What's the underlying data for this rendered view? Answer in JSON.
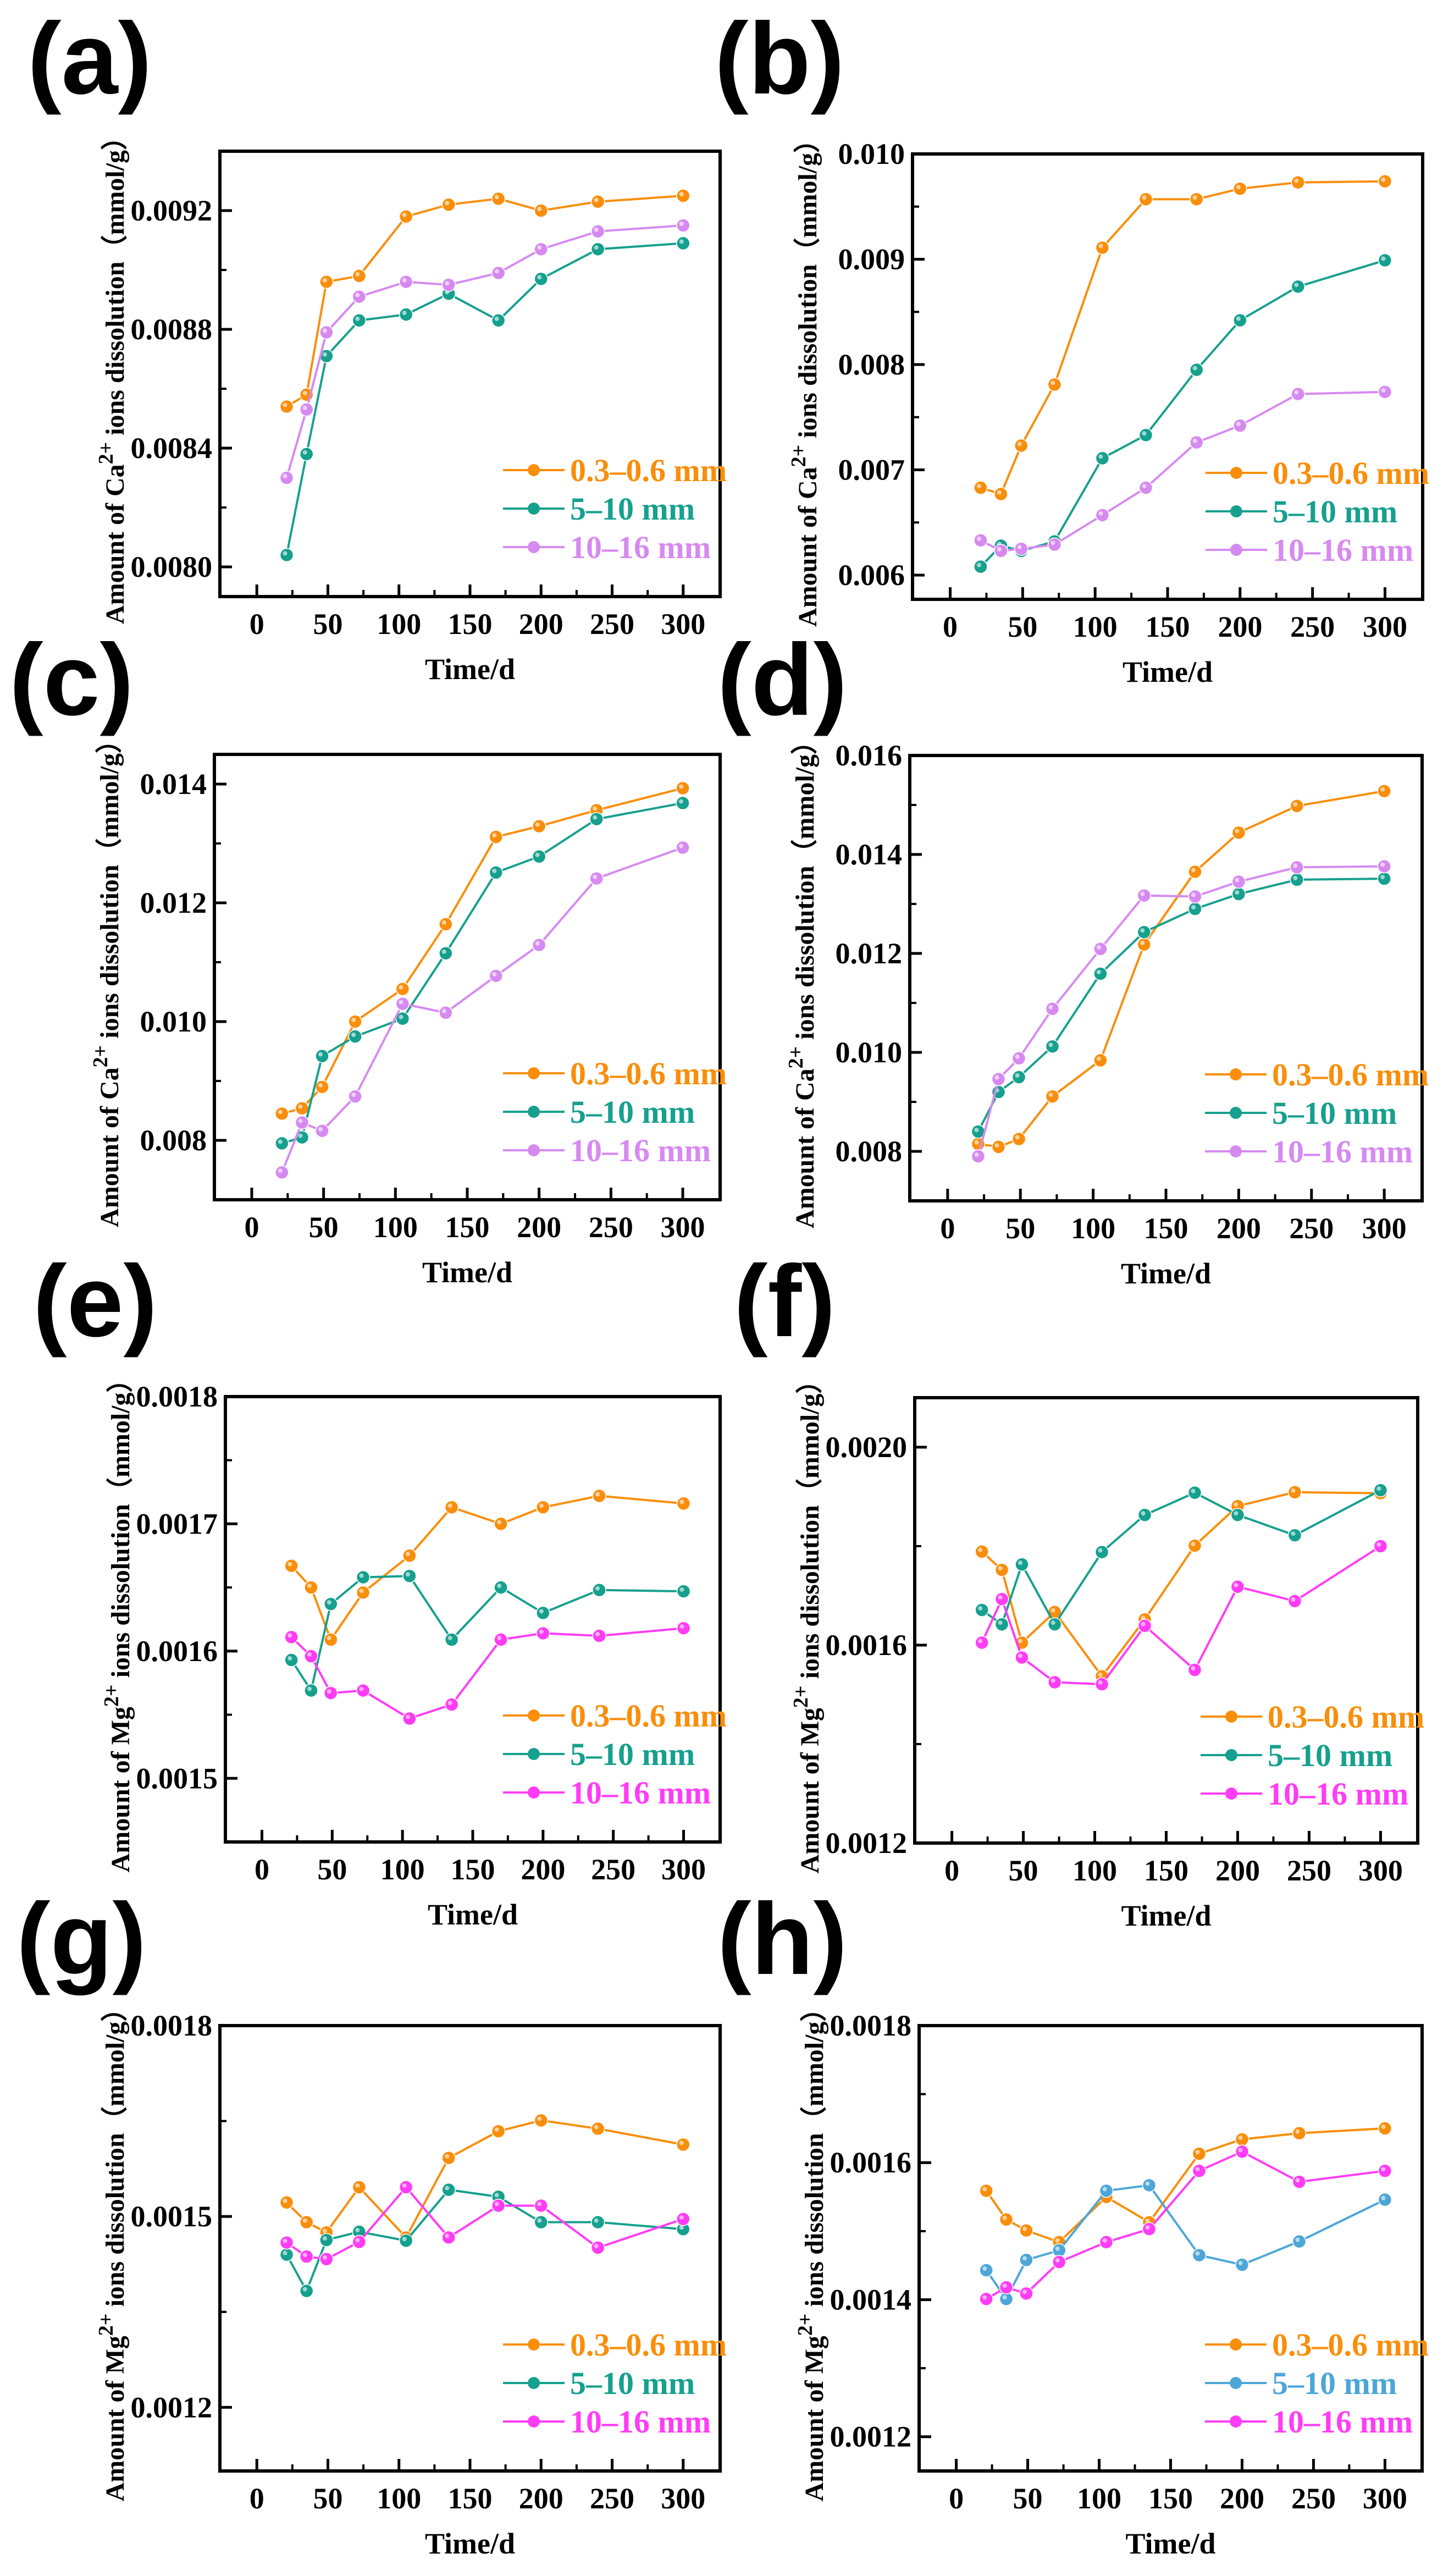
{
  "chart_data": [
    {
      "panel": "(a)",
      "type": "line",
      "xlabel": "Time/d",
      "ylabel_prefix": "Amount of Ca",
      "ylabel_sup": "2+",
      "ylabel_suffix": " ions dissolution（mmol/g）",
      "xlim": [
        -26,
        326
      ],
      "ylim": [
        0.0079,
        0.0094
      ],
      "xticks": [
        0,
        50,
        100,
        150,
        200,
        250,
        300
      ],
      "yticks": [
        "0.0080",
        "0.0084",
        "0.0088",
        "0.0092"
      ],
      "x": [
        21,
        35,
        49,
        72,
        105,
        135,
        170,
        200,
        240,
        300
      ],
      "legend_position": "bottom-right",
      "series": [
        {
          "name": "0.3–0.6 mm",
          "color": "#F98E0B",
          "values": [
            0.00854,
            0.00858,
            0.00896,
            0.00898,
            0.00918,
            0.00922,
            0.00924,
            0.0092,
            0.00923,
            0.00925
          ]
        },
        {
          "name": "5–10 mm",
          "color": "#16A08E",
          "values": [
            0.00804,
            0.00838,
            0.00871,
            0.00883,
            0.00885,
            0.00892,
            0.00883,
            0.00897,
            0.00907,
            0.00909
          ]
        },
        {
          "name": "10–16 mm",
          "color": "#D68AF0",
          "values": [
            0.0083,
            0.00853,
            0.00879,
            0.00891,
            0.00896,
            0.00895,
            0.00899,
            0.00907,
            0.00913,
            0.00915
          ]
        }
      ]
    },
    {
      "panel": "(b)",
      "type": "line",
      "xlabel": "Time/d",
      "ylabel_prefix": "Amount of Ca",
      "ylabel_sup": "2+",
      "ylabel_suffix": " ions dissolution（mmol/g）",
      "xlim": [
        -26,
        326
      ],
      "ylim": [
        0.00577,
        0.01
      ],
      "xticks": [
        0,
        50,
        100,
        150,
        200,
        250,
        300
      ],
      "yticks": [
        "0.006",
        "0.007",
        "0.008",
        "0.009",
        "0.010"
      ],
      "x": [
        21,
        35,
        49,
        72,
        105,
        135,
        170,
        200,
        240,
        300
      ],
      "legend_position": "bottom-right",
      "series": [
        {
          "name": "0.3–0.6 mm",
          "color": "#F98E0B",
          "values": [
            0.00683,
            0.00677,
            0.00723,
            0.00781,
            0.00911,
            0.00957,
            0.00957,
            0.00967,
            0.00973,
            0.00974
          ]
        },
        {
          "name": "5–10 mm",
          "color": "#16A08E",
          "values": [
            0.00608,
            0.00628,
            0.00623,
            0.00632,
            0.00711,
            0.00733,
            0.00795,
            0.00842,
            0.00874,
            0.00899
          ]
        },
        {
          "name": "10–16 mm",
          "color": "#D68AF0",
          "values": [
            0.00633,
            0.00623,
            0.00625,
            0.00629,
            0.00657,
            0.00683,
            0.00726,
            0.00742,
            0.00772,
            0.00774
          ]
        }
      ]
    },
    {
      "panel": "(c)",
      "type": "line",
      "xlabel": "Time/d",
      "ylabel_prefix": "Amount of Ca",
      "ylabel_sup": "2+",
      "ylabel_suffix": " ions dissolution（mmol/g）",
      "xlim": [
        -26,
        326
      ],
      "ylim": [
        0.007,
        0.0145
      ],
      "xticks": [
        0,
        50,
        100,
        150,
        200,
        250,
        300
      ],
      "yticks": [
        "0.008",
        "0.010",
        "0.012",
        "0.014"
      ],
      "x": [
        21,
        35,
        49,
        72,
        105,
        135,
        170,
        200,
        240,
        300
      ],
      "legend_position": "bottom-right",
      "series": [
        {
          "name": "0.3–0.6 mm",
          "color": "#F98E0B",
          "values": [
            0.00845,
            0.00854,
            0.0089,
            0.01,
            0.01055,
            0.01164,
            0.01311,
            0.01329,
            0.01356,
            0.01393
          ]
        },
        {
          "name": "5–10 mm",
          "color": "#16A08E",
          "values": [
            0.00795,
            0.00805,
            0.00942,
            0.00975,
            0.01005,
            0.01115,
            0.01251,
            0.01278,
            0.01341,
            0.01368
          ]
        },
        {
          "name": "10–16 mm",
          "color": "#D68AF0",
          "values": [
            0.00746,
            0.0083,
            0.00816,
            0.00874,
            0.0103,
            0.01015,
            0.01077,
            0.01129,
            0.01241,
            0.01293
          ]
        }
      ]
    },
    {
      "panel": "(d)",
      "type": "line",
      "xlabel": "Time/d",
      "ylabel_prefix": "Amount of Ca",
      "ylabel_sup": "2+",
      "ylabel_suffix": " ions dissolution（mmol/g）",
      "xlim": [
        -26,
        326
      ],
      "ylim": [
        0.007,
        0.016
      ],
      "xticks": [
        0,
        50,
        100,
        150,
        200,
        250,
        300
      ],
      "yticks": [
        "0.008",
        "0.010",
        "0.012",
        "0.014",
        "0.016"
      ],
      "x": [
        21,
        35,
        49,
        72,
        105,
        135,
        170,
        200,
        240,
        300
      ],
      "legend_position": "bottom-right",
      "series": [
        {
          "name": "0.3–0.6 mm",
          "color": "#F98E0B",
          "values": [
            0.00815,
            0.00809,
            0.00825,
            0.00911,
            0.00984,
            0.01218,
            0.01365,
            0.01444,
            0.01498,
            0.01528
          ]
        },
        {
          "name": "5–10 mm",
          "color": "#16A08E",
          "values": [
            0.0084,
            0.0092,
            0.0095,
            0.01012,
            0.01159,
            0.01243,
            0.0129,
            0.0132,
            0.01349,
            0.01351
          ]
        },
        {
          "name": "10–16 mm",
          "color": "#D68AF0",
          "values": [
            0.0079,
            0.00946,
            0.00988,
            0.01088,
            0.01209,
            0.01317,
            0.01315,
            0.01345,
            0.01374,
            0.01376
          ]
        }
      ]
    },
    {
      "panel": "(e)",
      "type": "line",
      "xlabel": "Time/d",
      "ylabel_prefix": "Amount of Mg",
      "ylabel_sup": "2+",
      "ylabel_suffix": " ions dissolution（mmol/g）",
      "xlim": [
        -26,
        326
      ],
      "ylim": [
        0.00145,
        0.0018
      ],
      "xticks": [
        0,
        50,
        100,
        150,
        200,
        250,
        300
      ],
      "yticks": [
        "0.0015",
        "0.0016",
        "0.0017",
        "0.0018"
      ],
      "x": [
        21,
        35,
        49,
        72,
        105,
        135,
        170,
        200,
        240,
        300
      ],
      "legend_position": "bottom-right",
      "series": [
        {
          "name": "0.3–0.6 mm",
          "color": "#F98E0B",
          "values": [
            0.001667,
            0.00165,
            0.001609,
            0.001646,
            0.001675,
            0.001713,
            0.0017,
            0.001713,
            0.001722,
            0.001716
          ]
        },
        {
          "name": "5–10 mm",
          "color": "#16A08E",
          "values": [
            0.001593,
            0.001569,
            0.001637,
            0.001658,
            0.001659,
            0.001609,
            0.00165,
            0.00163,
            0.001648,
            0.001647
          ]
        },
        {
          "name": "10–16 mm",
          "color": "#FF3CF5",
          "values": [
            0.001611,
            0.001596,
            0.001567,
            0.001569,
            0.001547,
            0.001558,
            0.001609,
            0.001614,
            0.001612,
            0.001618
          ]
        }
      ]
    },
    {
      "panel": "(f)",
      "type": "line",
      "xlabel": "Time/d",
      "ylabel_prefix": "Amount of Mg",
      "ylabel_sup": "2+",
      "ylabel_suffix": " ions dissolution（mmol/g）",
      "xlim": [
        -26,
        326
      ],
      "ylim": [
        0.0012,
        0.0021
      ],
      "xticks": [
        0,
        50,
        100,
        150,
        200,
        250,
        300
      ],
      "yticks": [
        "0.0012",
        "0.0016",
        "0.0020"
      ],
      "x": [
        21,
        35,
        49,
        72,
        105,
        135,
        170,
        200,
        240,
        300
      ],
      "legend_position": "bottom-right",
      "series": [
        {
          "name": "0.3–0.6 mm",
          "color": "#F98E0B",
          "values": [
            0.001789,
            0.001752,
            0.001605,
            0.001667,
            0.001537,
            0.001652,
            0.001801,
            0.001881,
            0.001909,
            0.001907
          ]
        },
        {
          "name": "5–10 mm",
          "color": "#16A08E",
          "values": [
            0.001671,
            0.001642,
            0.001763,
            0.001642,
            0.001788,
            0.001863,
            0.001908,
            0.001863,
            0.001822,
            0.001913
          ]
        },
        {
          "name": "10–16 mm",
          "color": "#FF3CF5",
          "values": [
            0.001605,
            0.001693,
            0.001575,
            0.001525,
            0.001521,
            0.001639,
            0.00155,
            0.001718,
            0.001689,
            0.0018
          ]
        }
      ]
    },
    {
      "panel": "(g)",
      "type": "line",
      "xlabel": "Time/d",
      "ylabel_prefix": "Amount of Mg",
      "ylabel_sup": "2+",
      "ylabel_suffix": " ions dissolution（mmol/g）",
      "xlim": [
        -26,
        326
      ],
      "ylim": [
        0.0011,
        0.0018
      ],
      "xticks": [
        0,
        50,
        100,
        150,
        200,
        250,
        300
      ],
      "yticks": [
        "0.0012",
        "0.0015",
        "0.0018"
      ],
      "x": [
        21,
        35,
        49,
        72,
        105,
        135,
        170,
        200,
        240,
        300
      ],
      "legend_position": "bottom-right",
      "series": [
        {
          "name": "0.3–0.6 mm",
          "color": "#F98E0B",
          "values": [
            0.001522,
            0.001491,
            0.001475,
            0.001546,
            0.001467,
            0.001592,
            0.001634,
            0.001651,
            0.001638,
            0.001613
          ]
        },
        {
          "name": "5–10 mm",
          "color": "#16A08E",
          "values": [
            0.00144,
            0.001383,
            0.001463,
            0.001476,
            0.001462,
            0.001542,
            0.001531,
            0.001491,
            0.001491,
            0.00148
          ]
        },
        {
          "name": "10–16 mm",
          "color": "#FF3CF5",
          "values": [
            0.001459,
            0.001437,
            0.001433,
            0.00146,
            0.001546,
            0.001467,
            0.001517,
            0.001517,
            0.001451,
            0.001496
          ]
        }
      ]
    },
    {
      "panel": "(h)",
      "type": "line",
      "xlabel": "Time/d",
      "ylabel_prefix": "Amount of Mg",
      "ylabel_sup": "2+",
      "ylabel_suffix": " ions dissolution（mmol/g）",
      "xlim": [
        -26,
        326
      ],
      "ylim": [
        0.00115,
        0.0018
      ],
      "xticks": [
        0,
        50,
        100,
        150,
        200,
        250,
        300
      ],
      "yticks": [
        "0.0012",
        "0.0014",
        "0.0016",
        "0.0018"
      ],
      "x": [
        21,
        35,
        49,
        72,
        105,
        135,
        170,
        200,
        240,
        300
      ],
      "legend_position": "bottom-right",
      "series": [
        {
          "name": "0.3–0.6 mm",
          "color": "#F98E0B",
          "values": [
            0.001559,
            0.001517,
            0.001501,
            0.001484,
            0.00155,
            0.001513,
            0.001613,
            0.001634,
            0.001643,
            0.00165
          ]
        },
        {
          "name": "5–10 mm",
          "color": "#4DA6D8",
          "values": [
            0.001443,
            0.001401,
            0.001458,
            0.001472,
            0.001559,
            0.001567,
            0.001465,
            0.001451,
            0.001485,
            0.001546
          ]
        },
        {
          "name": "10–16 mm",
          "color": "#FF3CF5",
          "values": [
            0.001401,
            0.001418,
            0.001409,
            0.001455,
            0.001484,
            0.001503,
            0.001588,
            0.001616,
            0.001572,
            0.001588
          ]
        }
      ]
    }
  ]
}
